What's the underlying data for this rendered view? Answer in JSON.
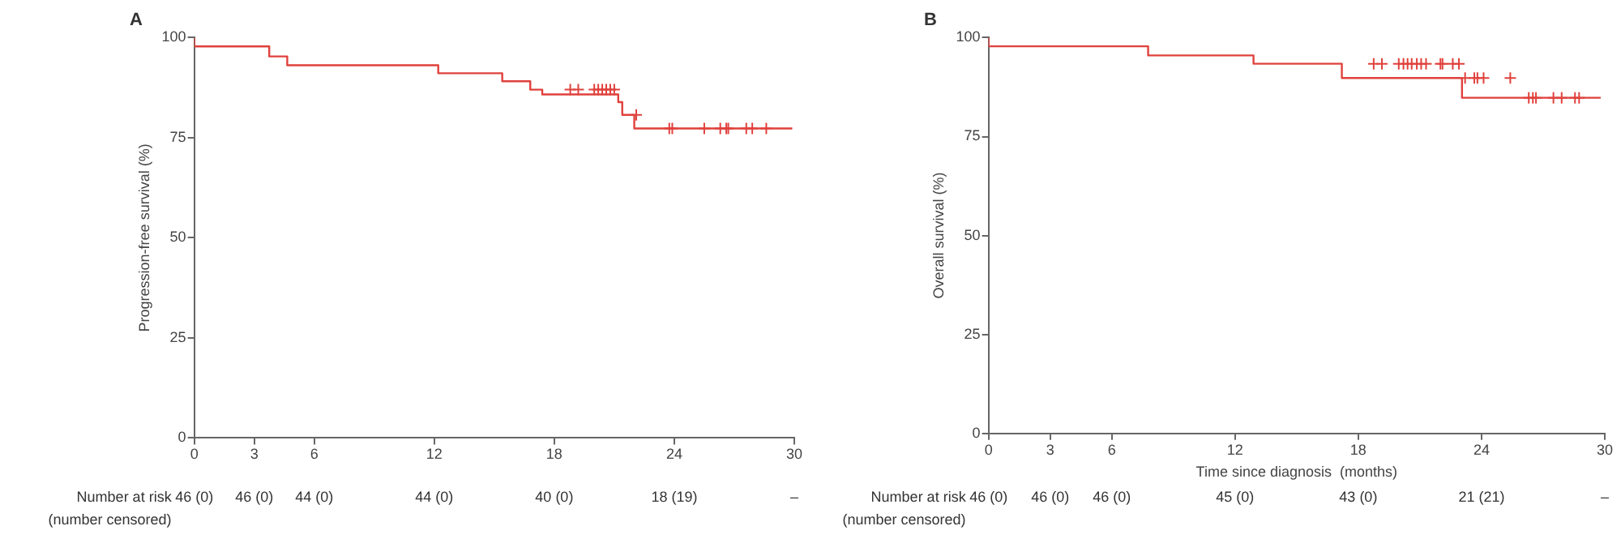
{
  "chart_data": [
    {
      "type": "step",
      "title": "A",
      "ylabel": "Progression-free survival (%)",
      "xlim": [
        0,
        30
      ],
      "xticks": [
        0,
        3,
        6,
        12,
        18,
        24,
        30
      ],
      "ylim": [
        0,
        100
      ],
      "yticks": [
        0,
        25,
        50,
        75,
        100
      ],
      "grid": false,
      "legend": false,
      "series": [
        {
          "color": "#e0413c",
          "x": [
            0,
            3.75,
            4.65,
            12.2,
            15.4,
            16.8,
            17.4,
            21.2,
            21.4,
            22.0,
            23.1,
            29.9
          ],
          "values": [
            100,
            97.8,
            95.3,
            93.1,
            91.1,
            89.1,
            87.0,
            85.8,
            83.9,
            80.7,
            77.3,
            77.3
          ]
        },
        {
          "type": "scatter",
          "marker": "cross",
          "color": "#e0413c",
          "x": [
            18.8,
            19.2,
            20.0,
            20.2,
            20.4,
            20.6,
            20.8,
            21.0,
            22.1,
            23.75,
            23.9,
            25.5,
            26.3,
            26.6,
            26.7,
            27.6,
            27.9,
            28.6
          ],
          "values": [
            87.0,
            87.0,
            87.0,
            87.0,
            87.0,
            87.0,
            87.0,
            87.0,
            80.7,
            77.3,
            77.3,
            77.3,
            77.3,
            77.3,
            77.3,
            77.3,
            77.3,
            77.3
          ]
        }
      ],
      "annotations": [
        "Number at risk\n(number censored)",
        "46 (0)",
        "46 (0)",
        "44 (0)",
        "44 (0)",
        "40 (0)",
        "18 (19)",
        "–"
      ]
    },
    {
      "type": "step",
      "title": "B",
      "ylabel": "Overall survival (%)",
      "xlabel": "Time since diagnosis  (months)",
      "xlim": [
        0,
        30
      ],
      "xticks": [
        0,
        3,
        6,
        12,
        18,
        24,
        30
      ],
      "ylim": [
        0,
        100
      ],
      "yticks": [
        0,
        25,
        50,
        75,
        100
      ],
      "grid": false,
      "legend": false,
      "series": [
        {
          "color": "#e0413c",
          "x": [
            0,
            7.77,
            12.9,
            17.2,
            23.05,
            26.0,
            29.8
          ],
          "values": [
            100,
            97.8,
            95.5,
            93.4,
            89.8,
            84.8,
            84.8
          ]
        },
        {
          "type": "scatter",
          "marker": "cross",
          "color": "#e0413c",
          "x": [
            18.75,
            19.15,
            19.97,
            20.2,
            20.4,
            20.6,
            20.85,
            21.06,
            21.3,
            22.0,
            22.1,
            22.6,
            22.9,
            23.2,
            23.65,
            23.8,
            24.1,
            25.4,
            26.3,
            26.5,
            26.65,
            27.5,
            27.9,
            28.55,
            28.75
          ],
          "values": [
            93.4,
            93.4,
            93.4,
            93.4,
            93.4,
            93.4,
            93.4,
            93.4,
            93.4,
            93.4,
            93.4,
            93.4,
            93.4,
            89.8,
            89.8,
            89.8,
            89.8,
            89.8,
            84.8,
            84.8,
            84.8,
            84.8,
            84.8,
            84.8,
            84.8
          ]
        }
      ],
      "annotations": [
        "Number at risk\n(number censored)",
        "46 (0)",
        "46 (0)",
        "46 (0)",
        "45 (0)",
        "43 (0)",
        "21 (21)",
        "–"
      ]
    }
  ]
}
